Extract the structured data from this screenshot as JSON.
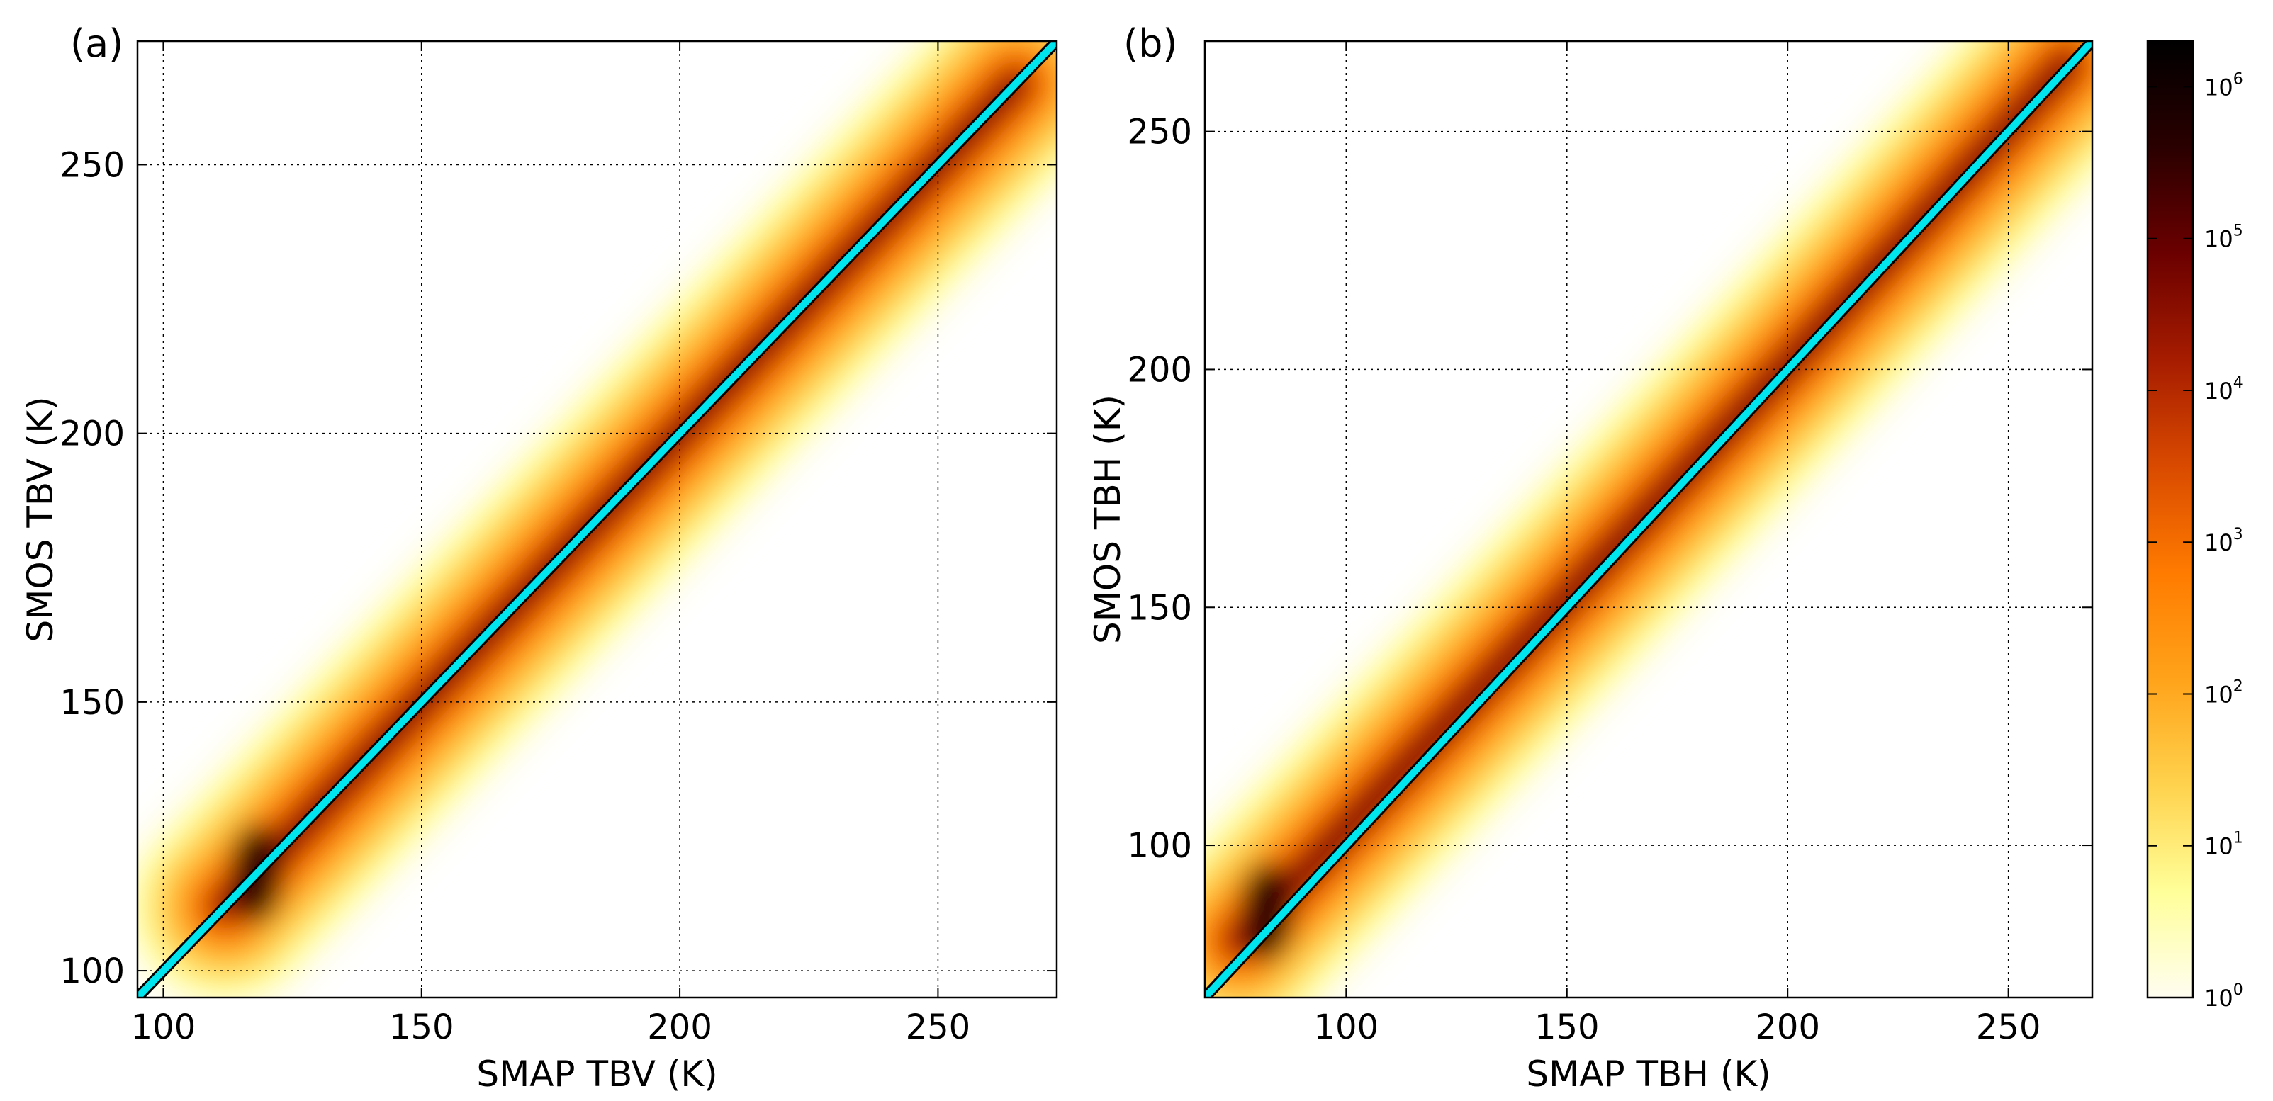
{
  "colors": {
    "identity_line": "#00e5ee",
    "identity_line_edge": "#000000",
    "cmap": [
      "#fffdf0",
      "#ffff99",
      "#ffd24d",
      "#ffa31a",
      "#ff7b00",
      "#d94a00",
      "#a61c00",
      "#6b0000",
      "#2a0000",
      "#000000"
    ]
  },
  "chart_data": [
    {
      "type": "heatmap",
      "panel_label": "(a)",
      "xlabel": "SMAP TBV (K)",
      "ylabel": "SMOS TBV (K)",
      "xlim": [
        95,
        273
      ],
      "ylim": [
        95,
        273
      ],
      "xticks": [
        100,
        150,
        200,
        250
      ],
      "yticks": [
        100,
        150,
        200,
        250
      ],
      "grid": true,
      "density_ridge": [
        [
          112,
          112
        ],
        [
          118,
          118
        ],
        [
          150,
          150
        ],
        [
          200,
          200
        ],
        [
          250,
          250
        ],
        [
          265,
          265
        ]
      ],
      "identity_line": [
        [
          95,
          95
        ],
        [
          273,
          273
        ]
      ]
    },
    {
      "type": "heatmap",
      "panel_label": "(b)",
      "xlabel": "SMAP TBH (K)",
      "ylabel": "SMOS TBH (K)",
      "xlim": [
        68,
        269
      ],
      "ylim": [
        68,
        269
      ],
      "xticks": [
        100,
        150,
        200,
        250
      ],
      "yticks": [
        100,
        150,
        200,
        250
      ],
      "grid": true,
      "density_ridge": [
        [
          76,
          80
        ],
        [
          82,
          86
        ],
        [
          150,
          152
        ],
        [
          200,
          201
        ],
        [
          250,
          251
        ],
        [
          263,
          264
        ]
      ],
      "identity_line": [
        [
          68,
          68
        ],
        [
          269,
          269
        ]
      ]
    }
  ],
  "colorbar": {
    "scale": "log",
    "range": [
      1,
      2000000
    ],
    "ticks": [
      {
        "base": "10",
        "exp": "0",
        "value": 1
      },
      {
        "base": "10",
        "exp": "1",
        "value": 10
      },
      {
        "base": "10",
        "exp": "2",
        "value": 100
      },
      {
        "base": "10",
        "exp": "3",
        "value": 1000
      },
      {
        "base": "10",
        "exp": "4",
        "value": 10000
      },
      {
        "base": "10",
        "exp": "5",
        "value": 100000
      },
      {
        "base": "10",
        "exp": "6",
        "value": 1000000
      }
    ]
  }
}
